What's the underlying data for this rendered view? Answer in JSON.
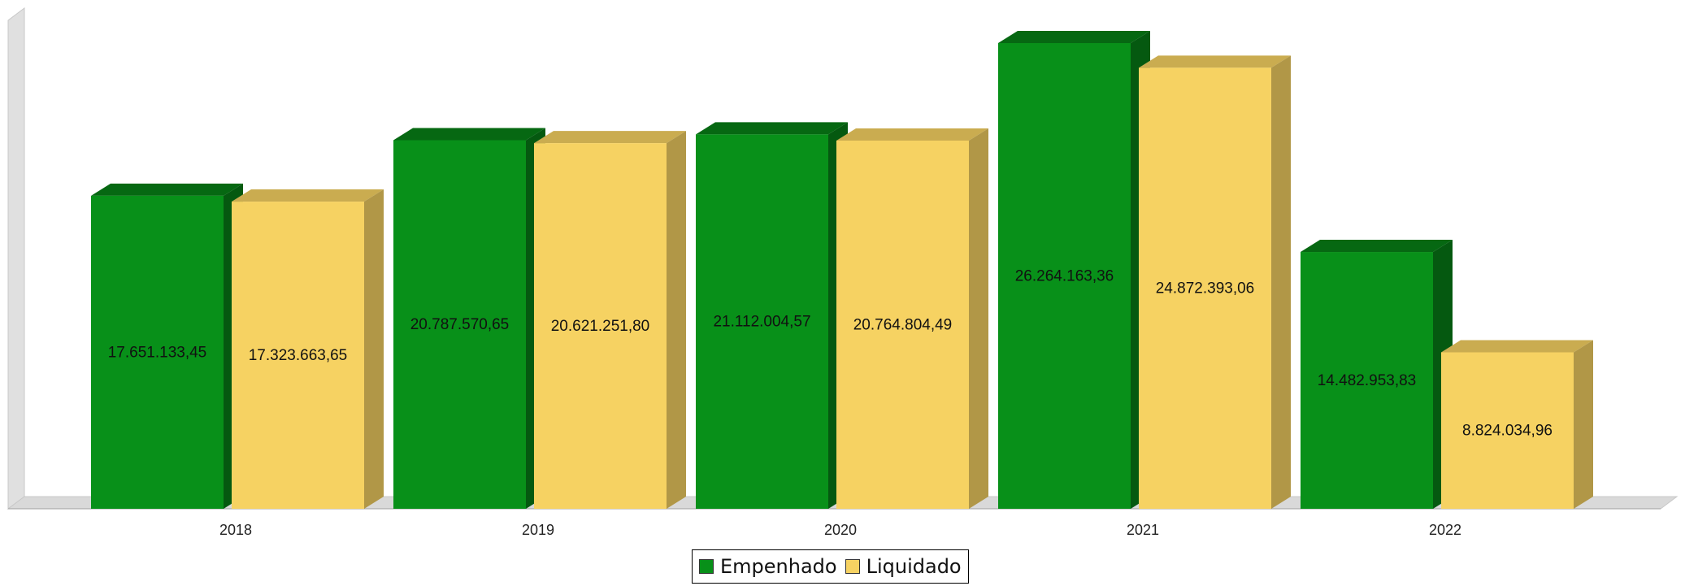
{
  "chart_data": {
    "type": "bar",
    "categories": [
      "2018",
      "2019",
      "2020",
      "2021",
      "2022"
    ],
    "series": [
      {
        "name": "Empenhado",
        "color": "#089019",
        "values": [
          17651133.45,
          20787570.65,
          21112004.57,
          26264163.36,
          14482953.83
        ],
        "labels": [
          "17.651.133,45",
          "20.787.570,65",
          "21.112.004,57",
          "26.264.163,36",
          "14.482.953,83"
        ]
      },
      {
        "name": "Liquidado",
        "color": "#F6D262",
        "values": [
          17323663.65,
          20621251.8,
          20764804.49,
          24872393.06,
          8824034.96
        ],
        "labels": [
          "17.323.663,65",
          "20.621.251,80",
          "20.764.804,49",
          "24.872.393,06",
          "8.824.034,96"
        ]
      }
    ],
    "ylim": [
      0,
      26264163.36
    ],
    "grid": false,
    "legend_position": "bottom-center",
    "style": "3d-bar"
  }
}
